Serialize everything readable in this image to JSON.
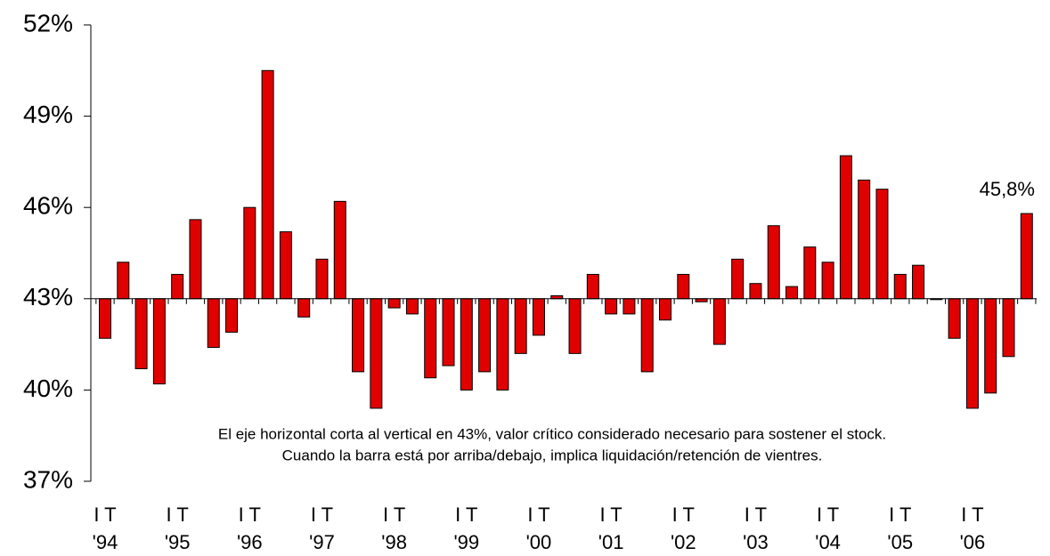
{
  "chart_data": {
    "type": "bar",
    "categories": [
      [
        "I T",
        "'94"
      ],
      null,
      null,
      null,
      [
        "I T",
        "'95"
      ],
      null,
      null,
      null,
      [
        "I T",
        "'96"
      ],
      null,
      null,
      null,
      [
        "I T",
        "'97"
      ],
      null,
      null,
      null,
      [
        "I T",
        "'98"
      ],
      null,
      null,
      null,
      [
        "I T",
        "'99"
      ],
      null,
      null,
      null,
      [
        "I T",
        "'00"
      ],
      null,
      null,
      null,
      [
        "I T",
        "'01"
      ],
      null,
      null,
      null,
      [
        "I T",
        "'02"
      ],
      null,
      null,
      null,
      [
        "I T",
        "'03"
      ],
      null,
      null,
      null,
      [
        "I T",
        "'04"
      ],
      null,
      null,
      null,
      [
        "I T",
        "'05"
      ],
      null,
      null,
      null,
      [
        "I T",
        "'06"
      ],
      null,
      null,
      null
    ],
    "values": [
      41.7,
      44.2,
      40.7,
      40.2,
      43.8,
      45.6,
      41.4,
      41.9,
      46.0,
      50.5,
      45.2,
      42.4,
      44.3,
      46.2,
      40.6,
      39.4,
      42.7,
      42.5,
      40.4,
      40.8,
      40.0,
      40.6,
      40.0,
      41.2,
      41.8,
      43.1,
      41.2,
      43.8,
      42.5,
      42.5,
      40.6,
      42.3,
      43.8,
      42.9,
      41.5,
      44.3,
      43.5,
      45.4,
      43.4,
      44.7,
      44.2,
      47.7,
      46.9,
      46.6,
      43.8,
      44.1,
      43.0,
      41.7,
      39.4,
      39.9,
      41.1,
      45.8
    ],
    "value_labels": [
      null,
      null,
      null,
      null,
      null,
      null,
      null,
      null,
      null,
      null,
      null,
      null,
      null,
      null,
      null,
      null,
      null,
      null,
      null,
      null,
      null,
      null,
      null,
      null,
      null,
      null,
      null,
      null,
      null,
      null,
      null,
      null,
      null,
      null,
      null,
      null,
      null,
      null,
      null,
      null,
      null,
      null,
      null,
      null,
      null,
      null,
      null,
      null,
      null,
      null,
      null,
      "45,8%"
    ],
    "color": "#e00000",
    "ylim": [
      37,
      52
    ],
    "yticks": [
      {
        "value": 37,
        "label": "37%"
      },
      {
        "value": 40,
        "label": "40%"
      },
      {
        "value": 43,
        "label": "43%"
      },
      {
        "value": 46,
        "label": "46%"
      },
      {
        "value": 49,
        "label": "49%"
      },
      {
        "value": 52,
        "label": "52%"
      }
    ],
    "x_axis_crossing": 43,
    "annotations": [
      "El eje horizontal corta al vertical en 43%, valor crítico considerado necesario para sostener el stock.",
      "Cuando la barra está por arriba/debajo, implica liquidación/retención de vientres."
    ]
  }
}
